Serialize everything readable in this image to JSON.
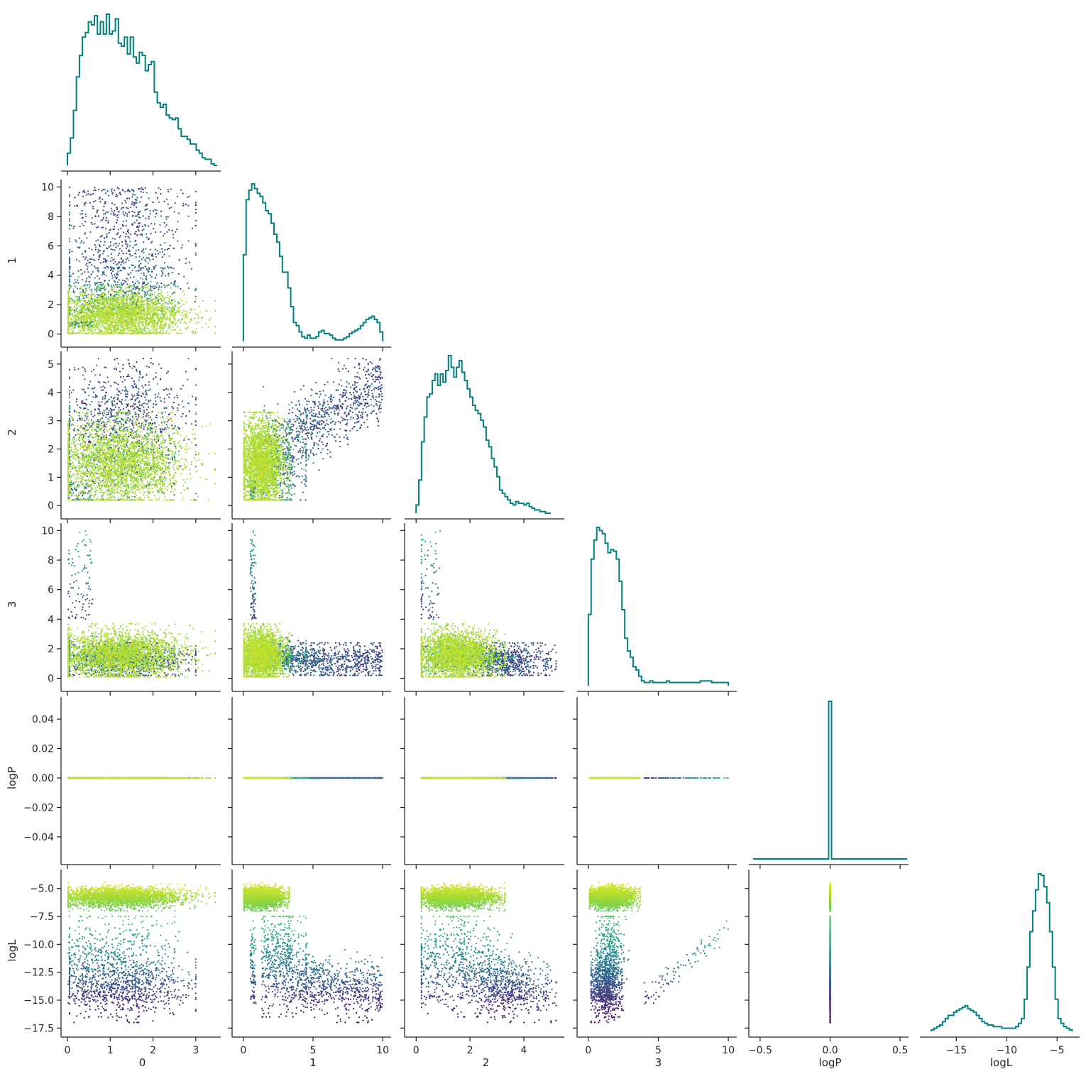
{
  "chart_data": {
    "type": "scatter",
    "variables": [
      "0",
      "1",
      "2",
      "3",
      "logP",
      "logL"
    ],
    "axis_ticks": {
      "0": [
        0,
        1,
        2,
        3
      ],
      "1": [
        0,
        2,
        4,
        6,
        8,
        10
      ],
      "1x": [
        0,
        5,
        10
      ],
      "2": [
        0,
        1,
        2,
        3,
        4,
        5
      ],
      "2x": [
        0,
        2,
        4
      ],
      "3": [
        0,
        2,
        4,
        6,
        8,
        10
      ],
      "3x": [
        0,
        5,
        10
      ],
      "logP": [
        -0.04,
        -0.02,
        0.0,
        0.02,
        0.04
      ],
      "logPx": [
        -0.5,
        0.0,
        0.5
      ],
      "logL": [
        -17.5,
        -15.0,
        -12.5,
        -10.0,
        -7.5,
        -5.0
      ],
      "logLx": [
        -15,
        -10,
        -5
      ]
    },
    "axis_tick_labels": {
      "0": [
        "0",
        "1",
        "2",
        "3"
      ],
      "1": [
        "0",
        "2",
        "4",
        "6",
        "8",
        "10"
      ],
      "1x": [
        "0",
        "5",
        "10"
      ],
      "2": [
        "0",
        "1",
        "2",
        "3",
        "4",
        "5"
      ],
      "2x": [
        "0",
        "2",
        "4"
      ],
      "3": [
        "0",
        "2",
        "4",
        "6",
        "8",
        "10"
      ],
      "3x": [
        "0",
        "5",
        "10"
      ],
      "logP": [
        "−0.04",
        "−0.02",
        "0.00",
        "0.02",
        "0.04"
      ],
      "logPx": [
        "−0.5",
        "0.0",
        "0.5"
      ],
      "logL": [
        "−17.5",
        "−15.0",
        "−12.5",
        "−10.0",
        "−7.5",
        "−5.0"
      ],
      "logLx": [
        "−15",
        "−10",
        "−5"
      ]
    },
    "axis_ranges": {
      "0": [
        -0.05,
        3.55
      ],
      "1": [
        -0.5,
        10.5
      ],
      "2": [
        -0.27,
        5.45
      ],
      "3": [
        -0.5,
        10.5
      ],
      "logP": [
        -0.055,
        0.055
      ],
      "logPx": [
        -0.55,
        0.55
      ],
      "logL": [
        -17.8,
        -3.3
      ]
    },
    "color_by": "logL",
    "colormap": "viridis",
    "color_range": [
      -17,
      -4
    ],
    "hist_color": "#008080",
    "histograms": {
      "0": {
        "range": [
          0,
          3.5
        ],
        "counts": [
          8,
          18,
          36,
          58,
          72,
          84,
          87,
          94,
          92,
          98,
          86,
          94,
          86,
          99,
          86,
          88,
          96,
          80,
          78,
          84,
          73,
          84,
          71,
          67,
          74,
          72,
          62,
          66,
          68,
          48,
          41,
          38,
          40,
          33,
          31,
          30,
          31,
          24,
          19,
          19,
          17,
          14,
          14,
          10,
          8,
          5,
          4,
          4,
          1,
          0
        ]
      },
      "1": {
        "range": [
          0,
          10
        ],
        "counts": [
          55,
          90,
          96,
          100,
          97,
          94,
          92,
          88,
          83,
          81,
          75,
          68,
          63,
          54,
          44,
          44,
          34,
          22,
          12,
          10,
          6,
          3,
          2,
          4,
          2,
          2,
          3,
          6,
          7,
          5,
          5,
          4,
          2,
          1,
          1,
          1,
          2,
          3,
          5,
          6,
          7,
          8,
          10,
          12,
          14,
          15,
          16,
          14,
          12,
          6
        ]
      },
      "2": {
        "range": [
          0,
          5
        ],
        "counts": [
          5,
          20,
          43,
          58,
          70,
          72,
          80,
          84,
          77,
          84,
          79,
          86,
          95,
          88,
          82,
          88,
          92,
          85,
          80,
          75,
          70,
          65,
          62,
          60,
          56,
          52,
          44,
          40,
          33,
          28,
          22,
          14,
          12,
          10,
          8,
          6,
          5,
          7,
          6,
          6,
          5,
          6,
          4,
          3,
          2,
          2,
          1,
          1,
          0,
          0
        ]
      },
      "3": {
        "range": [
          0,
          10
        ],
        "counts": [
          45,
          80,
          92,
          100,
          98,
          96,
          90,
          84,
          86,
          85,
          80,
          66,
          48,
          30,
          22,
          18,
          12,
          10,
          6,
          3,
          2,
          2,
          3,
          2,
          2,
          2,
          2,
          2,
          3,
          2,
          2,
          2,
          2,
          2,
          2,
          2,
          2,
          2,
          2,
          2,
          3,
          3,
          3,
          3,
          2,
          2,
          2,
          2,
          2,
          2
        ]
      },
      "logP": {
        "range": [
          -0.5,
          0.5
        ],
        "spike": 0.0,
        "spike_height": 100
      },
      "logL": {
        "range": [
          -17.5,
          -3.5
        ],
        "counts": [
          1,
          2,
          3,
          4,
          6,
          8,
          10,
          10,
          12,
          13,
          14,
          15,
          16,
          14,
          13,
          12,
          10,
          8,
          6,
          5,
          4,
          4,
          3,
          3,
          3,
          2,
          2,
          2,
          2,
          2,
          3,
          5,
          8,
          20,
          40,
          62,
          75,
          88,
          98,
          97,
          90,
          80,
          62,
          40,
          20,
          8,
          5,
          3,
          2,
          1
        ]
      }
    }
  }
}
